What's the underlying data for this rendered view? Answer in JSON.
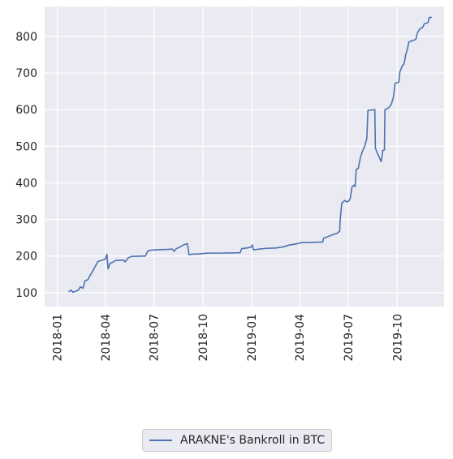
{
  "chart_data": {
    "type": "line",
    "xlabel": "",
    "ylabel": "",
    "grid": true,
    "legend_position": "bottom-center",
    "series_color": "#4c72b0",
    "background_color": "#eaeaf2",
    "xlim": [
      "2017-12-08",
      "2019-12-28"
    ],
    "ylim": [
      62,
      882
    ],
    "x_ticks": [
      "2018-01",
      "2018-04",
      "2018-07",
      "2018-10",
      "2019-01",
      "2019-04",
      "2019-07",
      "2019-10"
    ],
    "y_ticks": [
      100,
      200,
      300,
      400,
      500,
      600,
      700,
      800
    ],
    "series": [
      {
        "name": "ARAKNE's Bankroll in BTC",
        "points": [
          [
            "2018-01-22",
            102
          ],
          [
            "2018-01-27",
            107
          ],
          [
            "2018-01-30",
            101
          ],
          [
            "2018-02-05",
            104
          ],
          [
            "2018-02-10",
            108
          ],
          [
            "2018-02-13",
            116
          ],
          [
            "2018-02-18",
            112
          ],
          [
            "2018-02-22",
            133
          ],
          [
            "2018-02-27",
            135
          ],
          [
            "2018-03-03",
            146
          ],
          [
            "2018-03-08",
            158
          ],
          [
            "2018-03-13",
            172
          ],
          [
            "2018-03-18",
            185
          ],
          [
            "2018-03-25",
            188
          ],
          [
            "2018-04-01",
            192
          ],
          [
            "2018-04-04",
            205
          ],
          [
            "2018-04-06",
            165
          ],
          [
            "2018-04-10",
            180
          ],
          [
            "2018-04-15",
            183
          ],
          [
            "2018-04-20",
            188
          ],
          [
            "2018-05-05",
            189
          ],
          [
            "2018-05-08",
            184
          ],
          [
            "2018-05-14",
            195
          ],
          [
            "2018-05-20",
            199
          ],
          [
            "2018-06-15",
            200
          ],
          [
            "2018-06-20",
            214
          ],
          [
            "2018-06-25",
            216
          ],
          [
            "2018-07-05",
            217
          ],
          [
            "2018-07-25",
            218
          ],
          [
            "2018-08-05",
            219
          ],
          [
            "2018-08-08",
            213
          ],
          [
            "2018-08-12",
            220
          ],
          [
            "2018-08-18",
            224
          ],
          [
            "2018-08-25",
            230
          ],
          [
            "2018-09-02",
            234
          ],
          [
            "2018-09-05",
            204
          ],
          [
            "2018-09-12",
            205
          ],
          [
            "2018-09-25",
            206
          ],
          [
            "2018-10-10",
            208
          ],
          [
            "2018-11-01",
            208
          ],
          [
            "2018-12-10",
            209
          ],
          [
            "2018-12-13",
            220
          ],
          [
            "2018-12-22",
            222
          ],
          [
            "2018-12-30",
            224
          ],
          [
            "2019-01-02",
            230
          ],
          [
            "2019-01-04",
            217
          ],
          [
            "2019-01-15",
            219
          ],
          [
            "2019-01-28",
            221
          ],
          [
            "2019-02-15",
            222
          ],
          [
            "2019-03-01",
            225
          ],
          [
            "2019-03-12",
            230
          ],
          [
            "2019-03-25",
            233
          ],
          [
            "2019-04-05",
            237
          ],
          [
            "2019-04-15",
            237
          ],
          [
            "2019-05-05",
            238
          ],
          [
            "2019-05-14",
            238
          ],
          [
            "2019-05-16",
            249
          ],
          [
            "2019-05-22",
            252
          ],
          [
            "2019-06-01",
            258
          ],
          [
            "2019-06-10",
            262
          ],
          [
            "2019-06-15",
            268
          ],
          [
            "2019-06-16",
            300
          ],
          [
            "2019-06-19",
            345
          ],
          [
            "2019-06-25",
            352
          ],
          [
            "2019-06-28",
            348
          ],
          [
            "2019-07-02",
            350
          ],
          [
            "2019-07-05",
            358
          ],
          [
            "2019-07-08",
            388
          ],
          [
            "2019-07-12",
            394
          ],
          [
            "2019-07-14",
            390
          ],
          [
            "2019-07-16",
            436
          ],
          [
            "2019-07-20",
            440
          ],
          [
            "2019-07-24",
            470
          ],
          [
            "2019-07-28",
            487
          ],
          [
            "2019-08-01",
            500
          ],
          [
            "2019-08-05",
            522
          ],
          [
            "2019-08-07",
            598
          ],
          [
            "2019-08-20",
            600
          ],
          [
            "2019-08-21",
            495
          ],
          [
            "2019-08-25",
            480
          ],
          [
            "2019-09-01",
            458
          ],
          [
            "2019-09-04",
            488
          ],
          [
            "2019-09-07",
            490
          ],
          [
            "2019-09-08",
            600
          ],
          [
            "2019-09-15",
            605
          ],
          [
            "2019-09-20",
            615
          ],
          [
            "2019-09-24",
            635
          ],
          [
            "2019-09-27",
            672
          ],
          [
            "2019-10-04",
            675
          ],
          [
            "2019-10-06",
            703
          ],
          [
            "2019-10-10",
            718
          ],
          [
            "2019-10-14",
            726
          ],
          [
            "2019-10-17",
            750
          ],
          [
            "2019-10-20",
            765
          ],
          [
            "2019-10-23",
            785
          ],
          [
            "2019-11-01",
            790
          ],
          [
            "2019-11-05",
            792
          ],
          [
            "2019-11-08",
            810
          ],
          [
            "2019-11-12",
            820
          ],
          [
            "2019-11-18",
            825
          ],
          [
            "2019-11-21",
            835
          ],
          [
            "2019-11-28",
            838
          ],
          [
            "2019-11-30",
            852
          ],
          [
            "2019-12-05",
            852
          ]
        ]
      }
    ]
  }
}
